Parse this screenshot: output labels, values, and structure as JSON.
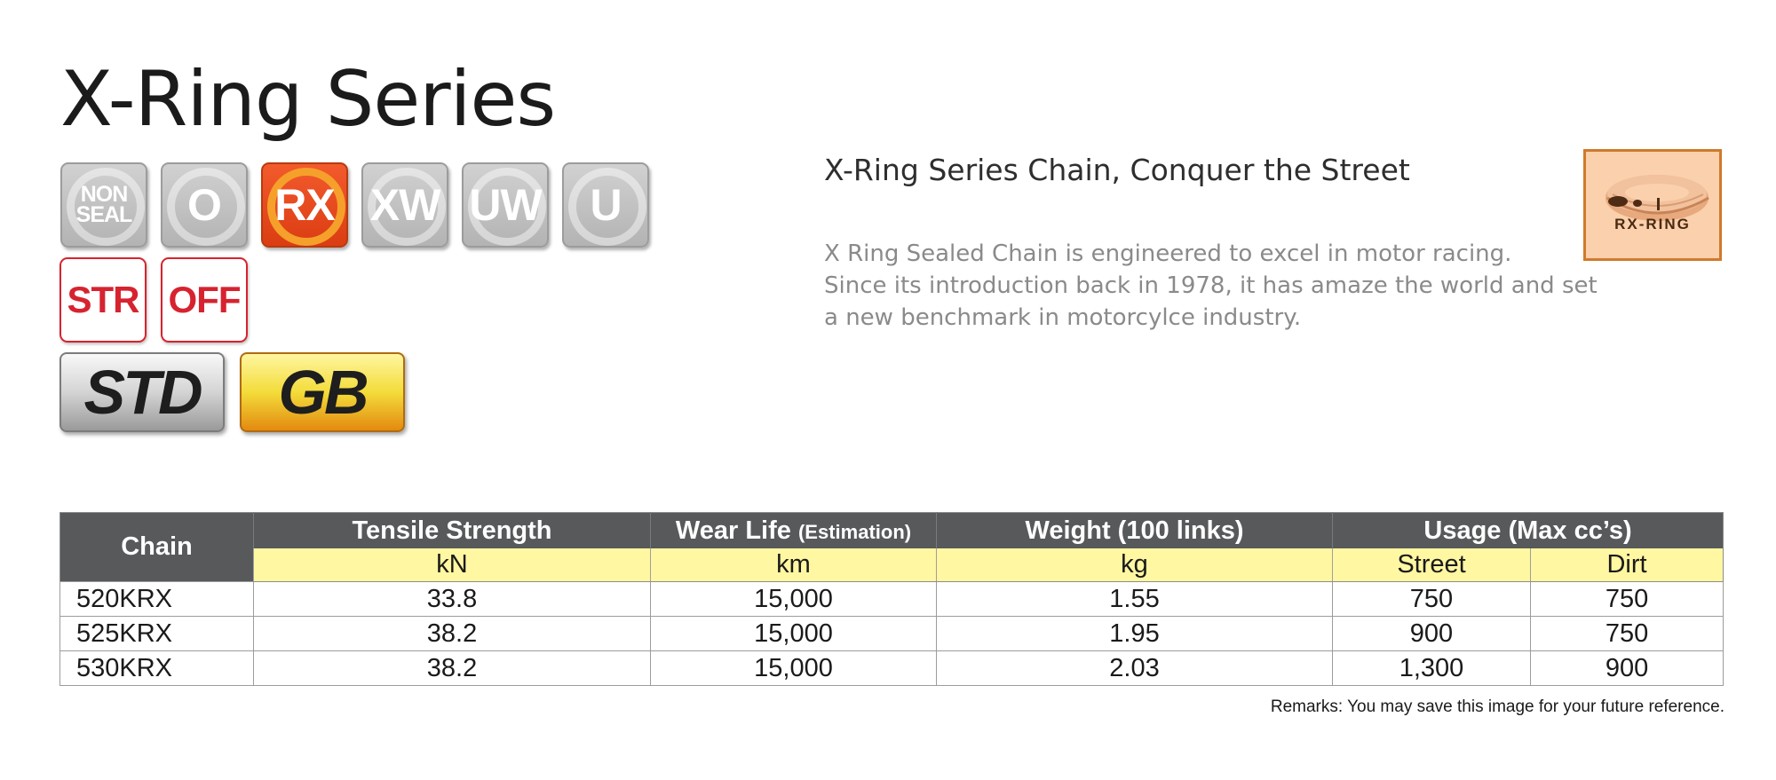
{
  "title": "X-Ring Series",
  "badges": {
    "seal_types": [
      {
        "label_line1": "NON",
        "label_line2": "SEAL",
        "state": "inactive"
      },
      {
        "label": "O",
        "state": "inactive"
      },
      {
        "label": "RX",
        "state": "active"
      },
      {
        "label": "XW",
        "state": "inactive"
      },
      {
        "label": "UW",
        "state": "inactive"
      },
      {
        "label": "U",
        "state": "inactive"
      }
    ],
    "usage": [
      {
        "label": "STR"
      },
      {
        "label": "OFF"
      }
    ],
    "grades": [
      {
        "label": "STD"
      },
      {
        "label": "GB"
      }
    ]
  },
  "subtitle": "X-Ring Series Chain, Conquer the Street",
  "description": {
    "line1": "X Ring Sealed Chain is engineered to excel in motor racing.",
    "line2": "Since its introduction back in 1978, it has amaze the world and set",
    "line3": "a new benchmark in motorcylce industry."
  },
  "logo": {
    "text": "RX-RING",
    "icon": "rx-ring-seal-icon"
  },
  "table": {
    "headers": {
      "chain": "Chain",
      "tensile": "Tensile Strength",
      "wear": "Wear Life",
      "wear_note": "(Estimation)",
      "weight": "Weight (100 links)",
      "usage": "Usage (Max cc’s)"
    },
    "units": {
      "tensile": "kN",
      "wear": "km",
      "weight": "kg",
      "street": "Street",
      "dirt": "Dirt"
    },
    "rows": [
      {
        "chain": "520KRX",
        "tensile": "33.8",
        "wear": "15,000",
        "weight": "1.55",
        "street": "750",
        "dirt": "750"
      },
      {
        "chain": "525KRX",
        "tensile": "38.2",
        "wear": "15,000",
        "weight": "1.95",
        "street": "900",
        "dirt": "750"
      },
      {
        "chain": "530KRX",
        "tensile": "38.2",
        "wear": "15,000",
        "weight": "2.03",
        "street": "1,300",
        "dirt": "900"
      }
    ]
  },
  "remarks": "Remarks: You may save this image for your future reference.",
  "colors": {
    "active_badge": "#e8481c",
    "inactive_badge": "#c3c3c3",
    "usage_badge": "#d7232f",
    "header_bg": "#58595b",
    "unit_bg": "#fff7a1",
    "logo_border": "#cf7a2b"
  }
}
